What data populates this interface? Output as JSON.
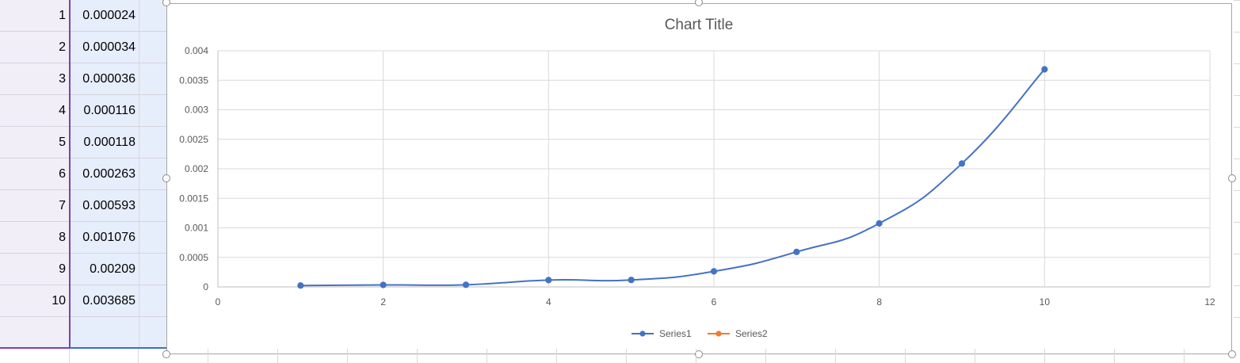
{
  "sheet": {
    "rows": [
      {
        "a": "1",
        "b": "0.000024"
      },
      {
        "a": "2",
        "b": "0.000034"
      },
      {
        "a": "3",
        "b": "0.000036"
      },
      {
        "a": "4",
        "b": "0.000116"
      },
      {
        "a": "5",
        "b": "0.000118"
      },
      {
        "a": "6",
        "b": "0.000263"
      },
      {
        "a": "7",
        "b": "0.000593"
      },
      {
        "a": "8",
        "b": "0.001076"
      },
      {
        "a": "9",
        "b": "0.00209"
      },
      {
        "a": "10",
        "b": "0.003685"
      },
      {
        "a": "",
        "b": ""
      }
    ]
  },
  "chart_data": {
    "type": "scatter",
    "title": "Chart Title",
    "xlabel": "",
    "ylabel": "",
    "xlim": [
      0,
      12
    ],
    "ylim": [
      0,
      0.004
    ],
    "x_ticks": [
      "0",
      "2",
      "4",
      "6",
      "8",
      "10",
      "12"
    ],
    "y_ticks": [
      "0",
      "0.0005",
      "0.001",
      "0.0015",
      "0.002",
      "0.0025",
      "0.003",
      "0.0035",
      "0.004"
    ],
    "grid": true,
    "smooth_lines": true,
    "legend_position": "bottom",
    "series": [
      {
        "name": "Series1",
        "color": "#4472c4",
        "x": [
          1,
          2,
          3,
          4,
          5,
          6,
          7,
          8,
          9,
          10
        ],
        "y": [
          2.4e-05,
          3.4e-05,
          3.6e-05,
          0.000116,
          0.000118,
          0.000263,
          0.000593,
          0.001076,
          0.00209,
          0.003685
        ]
      },
      {
        "name": "Series2",
        "color": "#ed7d31",
        "x": [],
        "y": []
      }
    ]
  }
}
